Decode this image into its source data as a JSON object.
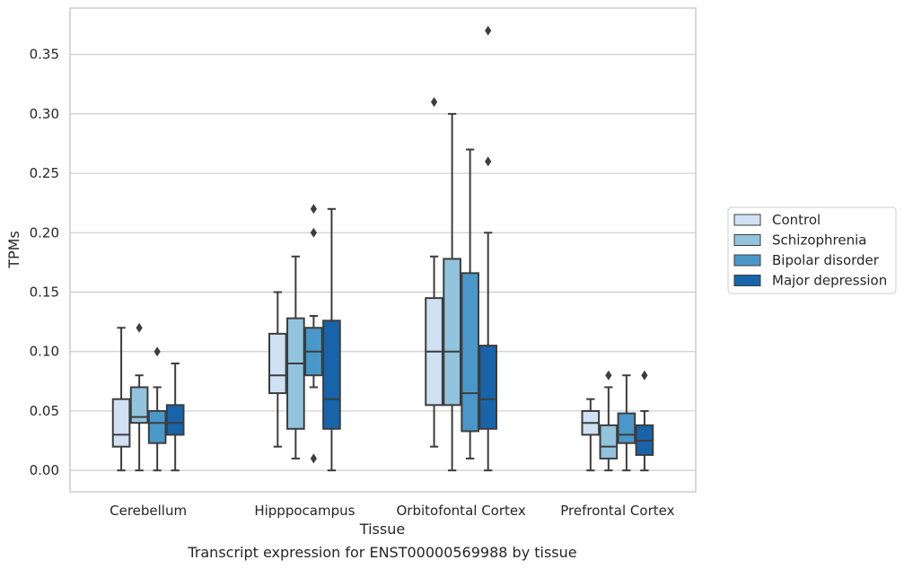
{
  "caption": "Transcript expression for ENST00000569988 by tissue",
  "chart_data": {
    "type": "boxplot",
    "title": "",
    "xlabel": "Tissue",
    "ylabel": "TPMs",
    "ylim": [
      -0.018,
      0.389
    ],
    "yticks": [
      0.0,
      0.05,
      0.1,
      0.15,
      0.2,
      0.25,
      0.3,
      0.35
    ],
    "ytick_labels": [
      "0.00",
      "0.05",
      "0.10",
      "0.15",
      "0.20",
      "0.25",
      "0.30",
      "0.35"
    ],
    "grid": "horizontal",
    "legend_position": "right",
    "categories": [
      "Cerebellum",
      "Hipppocampus",
      "Orbitofontal Cortex",
      "Prefrontal Cortex"
    ],
    "series": [
      {
        "name": "Control",
        "color": "#cfe1f2",
        "boxes": [
          {
            "whislo": 0.0,
            "q1": 0.02,
            "med": 0.03,
            "q3": 0.06,
            "whishi": 0.12,
            "fliers": []
          },
          {
            "whislo": 0.02,
            "q1": 0.065,
            "med": 0.08,
            "q3": 0.115,
            "whishi": 0.15,
            "fliers": []
          },
          {
            "whislo": 0.02,
            "q1": 0.055,
            "med": 0.1,
            "q3": 0.145,
            "whishi": 0.18,
            "fliers": [
              0.31
            ]
          },
          {
            "whislo": 0.0,
            "q1": 0.03,
            "med": 0.04,
            "q3": 0.05,
            "whishi": 0.06,
            "fliers": []
          }
        ]
      },
      {
        "name": "Schizophrenia",
        "color": "#93c4de",
        "boxes": [
          {
            "whislo": 0.0,
            "q1": 0.04,
            "med": 0.045,
            "q3": 0.07,
            "whishi": 0.08,
            "fliers": [
              0.12
            ]
          },
          {
            "whislo": 0.01,
            "q1": 0.035,
            "med": 0.09,
            "q3": 0.128,
            "whishi": 0.18,
            "fliers": []
          },
          {
            "whislo": 0.0,
            "q1": 0.055,
            "med": 0.1,
            "q3": 0.178,
            "whishi": 0.3,
            "fliers": []
          },
          {
            "whislo": 0.0,
            "q1": 0.01,
            "med": 0.02,
            "q3": 0.038,
            "whishi": 0.07,
            "fliers": [
              0.08
            ]
          }
        ]
      },
      {
        "name": "Bipolar disorder",
        "color": "#4a98c9",
        "boxes": [
          {
            "whislo": 0.0,
            "q1": 0.023,
            "med": 0.04,
            "q3": 0.05,
            "whishi": 0.07,
            "fliers": [
              0.1
            ]
          },
          {
            "whislo": 0.07,
            "q1": 0.08,
            "med": 0.1,
            "q3": 0.12,
            "whishi": 0.13,
            "fliers": [
              0.22,
              0.2,
              0.01
            ]
          },
          {
            "whislo": 0.01,
            "q1": 0.033,
            "med": 0.065,
            "q3": 0.166,
            "whishi": 0.27,
            "fliers": []
          },
          {
            "whislo": 0.0,
            "q1": 0.023,
            "med": 0.03,
            "q3": 0.048,
            "whishi": 0.08,
            "fliers": []
          }
        ]
      },
      {
        "name": "Major depression",
        "color": "#1764ab",
        "boxes": [
          {
            "whislo": 0.0,
            "q1": 0.03,
            "med": 0.04,
            "q3": 0.055,
            "whishi": 0.09,
            "fliers": []
          },
          {
            "whislo": 0.0,
            "q1": 0.035,
            "med": 0.06,
            "q3": 0.126,
            "whishi": 0.22,
            "fliers": []
          },
          {
            "whislo": 0.0,
            "q1": 0.035,
            "med": 0.06,
            "q3": 0.105,
            "whishi": 0.2,
            "fliers": [
              0.37,
              0.26
            ]
          },
          {
            "whislo": 0.0,
            "q1": 0.013,
            "med": 0.025,
            "q3": 0.038,
            "whishi": 0.05,
            "fliers": [
              0.08
            ]
          }
        ]
      }
    ]
  }
}
